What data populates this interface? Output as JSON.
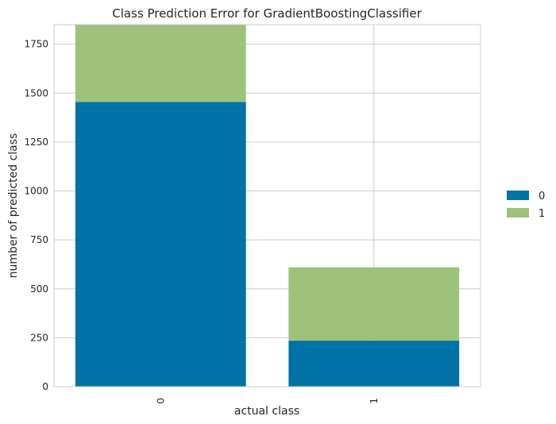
{
  "chart_data": {
    "type": "bar",
    "stacked": true,
    "title": "Class Prediction Error for GradientBoostingClassifier",
    "xlabel": "actual class",
    "ylabel": "number of predicted class",
    "categories": [
      "0",
      "1"
    ],
    "series": [
      {
        "name": "0",
        "color": "#0072a7",
        "values": [
          1455,
          235
        ]
      },
      {
        "name": "1",
        "color": "#9dc37b",
        "values": [
          395,
          375
        ]
      }
    ],
    "ylim": [
      0,
      1850
    ],
    "yticks": [
      0,
      250,
      500,
      750,
      1000,
      1250,
      1500,
      1750
    ],
    "grid": true,
    "legend_position": "right",
    "xtick_rotation": "vertical"
  }
}
